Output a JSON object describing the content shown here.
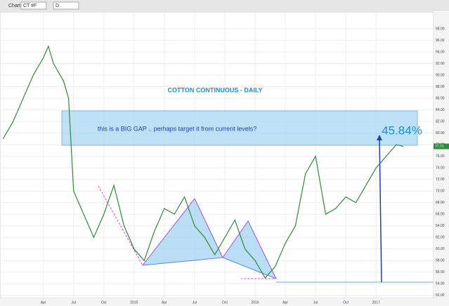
{
  "toolbar": {
    "label": "Chart",
    "symbol": "CT #F",
    "interval": "D"
  },
  "chart_data": {
    "type": "line",
    "title": "COTTON CONTINUOUS - DAILY",
    "annotation": "this is a BIG GAP .. perhaps target it from current levels?",
    "percent_label": "45.84%",
    "last_price": 77.71,
    "series": [
      {
        "name": "CT #F",
        "color": "#2e8b3a",
        "x": [
          -1,
          0,
          1,
          2,
          3,
          3.5,
          4,
          5,
          5.5,
          6,
          6.5,
          7,
          8,
          9,
          10,
          11,
          12,
          13,
          14,
          15,
          16,
          17,
          18,
          19,
          20,
          21,
          22,
          23,
          24,
          25,
          26,
          27,
          28,
          29,
          30,
          31,
          32,
          33,
          34,
          35,
          36,
          37,
          38,
          38.7
        ],
        "values": [
          79,
          82,
          86,
          90,
          93,
          95,
          92,
          89,
          86,
          70,
          68,
          66,
          62,
          66,
          71,
          64,
          60,
          58,
          63,
          67,
          66,
          69,
          64,
          62,
          59,
          62,
          65,
          60,
          58,
          55,
          57,
          61,
          64,
          73,
          76,
          66,
          67,
          69,
          68,
          71,
          74,
          76,
          78,
          77.71
        ]
      }
    ],
    "xlim": [
      -1.3,
      41.7
    ],
    "xticks": [
      {
        "value": 3,
        "label": "Apr"
      },
      {
        "value": 6,
        "label": "Jul"
      },
      {
        "value": 9,
        "label": "Oct"
      },
      {
        "value": 12,
        "label": "2015"
      },
      {
        "value": 15,
        "label": "Apr"
      },
      {
        "value": 18,
        "label": "Jul"
      },
      {
        "value": 21,
        "label": "Oct"
      },
      {
        "value": 24,
        "label": "2016"
      },
      {
        "value": 27,
        "label": "Apr"
      },
      {
        "value": 30,
        "label": "Jul"
      },
      {
        "value": 33,
        "label": "Oct"
      },
      {
        "value": 36,
        "label": "2017"
      }
    ],
    "ylim": [
      51.5,
      100.9
    ],
    "yticks": [
      {
        "value": 52,
        "label": "52.00"
      },
      {
        "value": 54,
        "label": "54.00"
      },
      {
        "value": 56,
        "label": "56.00"
      },
      {
        "value": 58,
        "label": "58.00"
      },
      {
        "value": 60,
        "label": "60.00"
      },
      {
        "value": 62,
        "label": "62.00"
      },
      {
        "value": 64,
        "label": "64.00"
      },
      {
        "value": 66,
        "label": "66.00"
      },
      {
        "value": 68,
        "label": "68.00"
      },
      {
        "value": 70,
        "label": "70.00"
      },
      {
        "value": 72,
        "label": "72.00"
      },
      {
        "value": 74,
        "label": "74.00"
      },
      {
        "value": 76,
        "label": "76.00"
      },
      {
        "value": 78,
        "label": "78.00"
      },
      {
        "value": 80,
        "label": "80.00"
      },
      {
        "value": 82,
        "label": "82.00"
      },
      {
        "value": 84,
        "label": "84.00"
      },
      {
        "value": 86,
        "label": "86.00"
      },
      {
        "value": 88,
        "label": "88.00"
      },
      {
        "value": 90,
        "label": "90.00"
      },
      {
        "value": 92,
        "label": "92.00"
      },
      {
        "value": 94,
        "label": "94.00"
      },
      {
        "value": 96,
        "label": "96.00"
      },
      {
        "value": 98,
        "label": "98.00"
      }
    ],
    "grid": true
  }
}
